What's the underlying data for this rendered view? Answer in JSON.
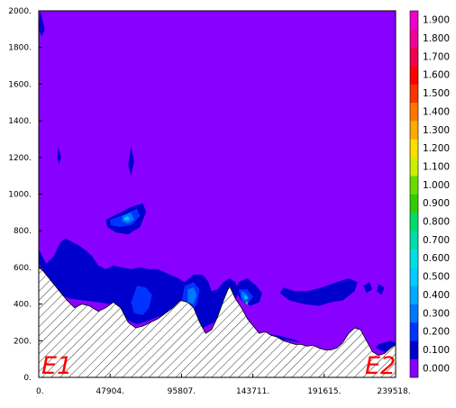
{
  "chart_data": {
    "type": "heatmap",
    "title": "",
    "xlabel": "",
    "ylabel": "",
    "xlim": [
      0,
      239518
    ],
    "ylim": [
      0,
      2000
    ],
    "x_ticks": [
      {
        "value": 0,
        "label": "0."
      },
      {
        "value": 47904,
        "label": "47904."
      },
      {
        "value": 95807,
        "label": "95807."
      },
      {
        "value": 143711,
        "label": "143711."
      },
      {
        "value": 191615,
        "label": "191615."
      },
      {
        "value": 239518,
        "label": "239518."
      }
    ],
    "y_ticks": [
      {
        "value": 0,
        "label": "0."
      },
      {
        "value": 200,
        "label": "200."
      },
      {
        "value": 400,
        "label": "400."
      },
      {
        "value": 600,
        "label": "600."
      },
      {
        "value": 800,
        "label": "800."
      },
      {
        "value": 1000,
        "label": "1000."
      },
      {
        "value": 1200,
        "label": "1200."
      },
      {
        "value": 1400,
        "label": "1400."
      },
      {
        "value": 1600,
        "label": "1600."
      },
      {
        "value": 1800,
        "label": "1800."
      },
      {
        "value": 2000,
        "label": "2000."
      }
    ],
    "background_level": 0.0,
    "background_color": "#8800ff",
    "colorbar": [
      {
        "value": 0.0,
        "label": "0.000",
        "color": "#8800ff"
      },
      {
        "value": 0.1,
        "label": "0.100",
        "color": "#0000cc"
      },
      {
        "value": 0.2,
        "label": "0.200",
        "color": "#0033ff"
      },
      {
        "value": 0.3,
        "label": "0.300",
        "color": "#0077ff"
      },
      {
        "value": 0.4,
        "label": "0.400",
        "color": "#00aaff"
      },
      {
        "value": 0.5,
        "label": "0.500",
        "color": "#00ccff"
      },
      {
        "value": 0.6,
        "label": "0.600",
        "color": "#00e0e0"
      },
      {
        "value": 0.7,
        "label": "0.700",
        "color": "#00ddaa"
      },
      {
        "value": 0.8,
        "label": "0.800",
        "color": "#00dd66"
      },
      {
        "value": 0.9,
        "label": "0.900",
        "color": "#33cc00"
      },
      {
        "value": 1.0,
        "label": "1.000",
        "color": "#66dd00"
      },
      {
        "value": 1.1,
        "label": "1.100",
        "color": "#ccee00"
      },
      {
        "value": 1.2,
        "label": "1.200",
        "color": "#ffdd00"
      },
      {
        "value": 1.3,
        "label": "1.300",
        "color": "#ffaa00"
      },
      {
        "value": 1.4,
        "label": "1.400",
        "color": "#ff7700"
      },
      {
        "value": 1.5,
        "label": "1.500",
        "color": "#ff3300"
      },
      {
        "value": 1.6,
        "label": "1.600",
        "color": "#ff0000"
      },
      {
        "value": 1.7,
        "label": "1.700",
        "color": "#ee0055"
      },
      {
        "value": 1.8,
        "label": "1.800",
        "color": "#ee0099"
      },
      {
        "value": 1.9,
        "label": "1.900",
        "color": "#ee00cc"
      }
    ],
    "terrain_profile": {
      "x": [
        0,
        3000,
        8000,
        14000,
        19000,
        24000,
        29000,
        34000,
        40000,
        45000,
        50000,
        55000,
        60000,
        65000,
        70000,
        75000,
        80000,
        85000,
        90000,
        95000,
        100000,
        104000,
        108000,
        112000,
        116000,
        120000,
        124000,
        128000,
        132000,
        136000,
        140000,
        144000,
        148000,
        152000,
        156000,
        160000,
        164000,
        168000,
        172000,
        176000,
        180000,
        184000,
        188000,
        192000,
        196000,
        200000,
        204000,
        208000,
        212000,
        216000,
        220000,
        224000,
        228000,
        232000,
        236000,
        239518
      ],
      "y": [
        600,
        580,
        530,
        470,
        420,
        380,
        400,
        390,
        360,
        380,
        410,
        380,
        300,
        270,
        280,
        300,
        320,
        350,
        380,
        420,
        410,
        380,
        300,
        240,
        260,
        330,
        420,
        500,
        430,
        380,
        320,
        280,
        240,
        250,
        230,
        220,
        200,
        190,
        180,
        180,
        170,
        175,
        160,
        150,
        150,
        160,
        190,
        240,
        270,
        260,
        200,
        140,
        120,
        130,
        160,
        180
      ]
    },
    "contours": [
      {
        "level": 0.1,
        "polygons": [
          [
            [
              1000,
              2000
            ],
            [
              4000,
              1900
            ],
            [
              2000,
              1860
            ],
            [
              0,
              1900
            ]
          ],
          [
            [
              13000,
              1260
            ],
            [
              15000,
              1200
            ],
            [
              13500,
              1160
            ],
            [
              12500,
              1200
            ]
          ],
          [
            [
              62000,
              1260
            ],
            [
              64000,
              1180
            ],
            [
              62000,
              1100
            ],
            [
              60000,
              1160
            ]
          ],
          [
            [
              45000,
              860
            ],
            [
              55000,
              900
            ],
            [
              62000,
              930
            ],
            [
              70000,
              950
            ],
            [
              72000,
              900
            ],
            [
              68000,
              820
            ],
            [
              60000,
              780
            ],
            [
              52000,
              790
            ],
            [
              46000,
              820
            ]
          ],
          [
            [
              0,
              700
            ],
            [
              5000,
              620
            ],
            [
              10000,
              660
            ],
            [
              14000,
              730
            ],
            [
              18000,
              760
            ],
            [
              22000,
              740
            ],
            [
              27000,
              720
            ],
            [
              32000,
              690
            ],
            [
              36000,
              660
            ],
            [
              40000,
              610
            ],
            [
              45000,
              590
            ],
            [
              50000,
              610
            ],
            [
              56000,
              600
            ],
            [
              62000,
              590
            ],
            [
              68000,
              600
            ],
            [
              74000,
              590
            ],
            [
              80000,
              590
            ],
            [
              88000,
              560
            ],
            [
              94000,
              540
            ],
            [
              98000,
              520
            ],
            [
              104000,
              560
            ],
            [
              110000,
              560
            ],
            [
              114000,
              520
            ],
            [
              116000,
              470
            ],
            [
              120000,
              480
            ],
            [
              124000,
              520
            ],
            [
              128000,
              540
            ],
            [
              132000,
              520
            ],
            [
              134000,
              470
            ],
            [
              132000,
              420
            ],
            [
              126000,
              360
            ],
            [
              118000,
              300
            ],
            [
              110000,
              270
            ],
            [
              104000,
              330
            ],
            [
              98000,
              380
            ],
            [
              92000,
              360
            ],
            [
              88000,
              340
            ],
            [
              80000,
              330
            ],
            [
              74000,
              310
            ],
            [
              66000,
              290
            ],
            [
              60000,
              310
            ],
            [
              55000,
              370
            ],
            [
              48000,
              400
            ],
            [
              40000,
              410
            ],
            [
              30000,
              420
            ],
            [
              20000,
              430
            ],
            [
              12000,
              470
            ],
            [
              6000,
              540
            ],
            [
              2000,
              600
            ],
            [
              0,
              620
            ]
          ],
          [
            [
              134000,
              520
            ],
            [
              140000,
              540
            ],
            [
              146000,
              500
            ],
            [
              150000,
              460
            ],
            [
              148000,
              410
            ],
            [
              142000,
              390
            ],
            [
              136000,
              420
            ],
            [
              132000,
              470
            ]
          ],
          [
            [
              150000,
              220
            ],
            [
              160000,
              210
            ],
            [
              168000,
              200
            ],
            [
              176000,
              190
            ],
            [
              170000,
              210
            ],
            [
              160000,
              230
            ],
            [
              152000,
              240
            ]
          ],
          [
            [
              164000,
              490
            ],
            [
              172000,
              470
            ],
            [
              180000,
              470
            ],
            [
              190000,
              490
            ],
            [
              200000,
              520
            ],
            [
              208000,
              540
            ],
            [
              214000,
              520
            ],
            [
              212000,
              470
            ],
            [
              204000,
              420
            ],
            [
              196000,
              410
            ],
            [
              188000,
              390
            ],
            [
              178000,
              400
            ],
            [
              168000,
              420
            ],
            [
              162000,
              460
            ]
          ],
          [
            [
              218000,
              500
            ],
            [
              222000,
              520
            ],
            [
              224000,
              480
            ],
            [
              220000,
              460
            ]
          ],
          [
            [
              228000,
              510
            ],
            [
              232000,
              490
            ],
            [
              230000,
              450
            ],
            [
              227000,
              470
            ]
          ],
          [
            [
              228000,
              180
            ],
            [
              236000,
              200
            ],
            [
              239518,
              190
            ],
            [
              239518,
              140
            ],
            [
              232000,
              140
            ],
            [
              226000,
              160
            ]
          ]
        ]
      },
      {
        "level": 0.2,
        "polygons": [
          [
            [
              48000,
              860
            ],
            [
              58000,
              890
            ],
            [
              66000,
              920
            ],
            [
              68000,
              880
            ],
            [
              62000,
              830
            ],
            [
              54000,
              820
            ],
            [
              48000,
              830
            ]
          ],
          [
            [
              98000,
              500
            ],
            [
              104000,
              520
            ],
            [
              108000,
              480
            ],
            [
              106000,
              400
            ],
            [
              102000,
              350
            ],
            [
              98000,
              370
            ],
            [
              96000,
              420
            ]
          ],
          [
            [
              66000,
              500
            ],
            [
              72000,
              490
            ],
            [
              76000,
              450
            ],
            [
              74000,
              380
            ],
            [
              70000,
              340
            ],
            [
              64000,
              350
            ],
            [
              62000,
              410
            ]
          ],
          [
            [
              134000,
              480
            ],
            [
              140000,
              480
            ],
            [
              144000,
              440
            ],
            [
              140000,
              400
            ],
            [
              136000,
              420
            ]
          ]
        ]
      },
      {
        "level": 0.3,
        "polygons": [
          [
            [
              56000,
              880
            ],
            [
              62000,
              900
            ],
            [
              64000,
              860
            ],
            [
              60000,
              840
            ],
            [
              56000,
              850
            ]
          ],
          [
            [
              100000,
              480
            ],
            [
              104000,
              490
            ],
            [
              106000,
              450
            ],
            [
              104000,
              400
            ],
            [
              100000,
              410
            ]
          ],
          [
            [
              136000,
              470
            ],
            [
              139000,
              460
            ],
            [
              141000,
              430
            ],
            [
              138000,
              415
            ],
            [
              136000,
              440
            ]
          ]
        ]
      },
      {
        "level": 0.5,
        "polygons": [
          [
            [
              57000,
              870
            ],
            [
              60000,
              880
            ],
            [
              61000,
              860
            ],
            [
              58000,
              855
            ]
          ],
          [
            [
              138000,
              450
            ],
            [
              140000,
              440
            ],
            [
              140000,
              425
            ],
            [
              138000,
              430
            ]
          ]
        ]
      },
      {
        "level": 0.8,
        "polygons": [
          [
            [
              139000,
              420
            ],
            [
              140500,
              410
            ],
            [
              140000,
              395
            ],
            [
              138800,
              405
            ]
          ]
        ]
      }
    ],
    "annotations": [
      "E1",
      "E2"
    ]
  }
}
